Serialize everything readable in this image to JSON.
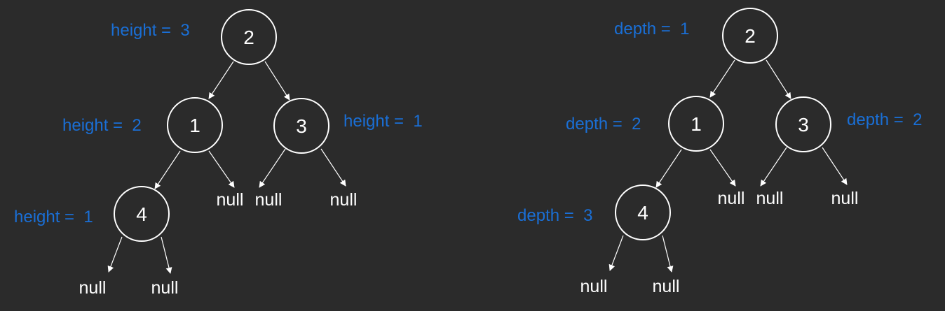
{
  "colors": {
    "background": "#2b2b2b",
    "line": "#ffffff",
    "node_text": "#ffffff",
    "label": "#1a6fd6"
  },
  "null_label": "null",
  "height_tree": {
    "nodes": [
      {
        "id": "n2",
        "value": "2",
        "label": "height =  3"
      },
      {
        "id": "n1",
        "value": "1",
        "label": "height =  2"
      },
      {
        "id": "n3",
        "value": "3",
        "label": "height =  1"
      },
      {
        "id": "n4",
        "value": "4",
        "label": "height =  1"
      }
    ]
  },
  "depth_tree": {
    "nodes": [
      {
        "id": "n2",
        "value": "2",
        "label": "depth =  1"
      },
      {
        "id": "n1",
        "value": "1",
        "label": "depth =  2"
      },
      {
        "id": "n3",
        "value": "3",
        "label": "depth =  2"
      },
      {
        "id": "n4",
        "value": "4",
        "label": "depth =  3"
      }
    ]
  }
}
